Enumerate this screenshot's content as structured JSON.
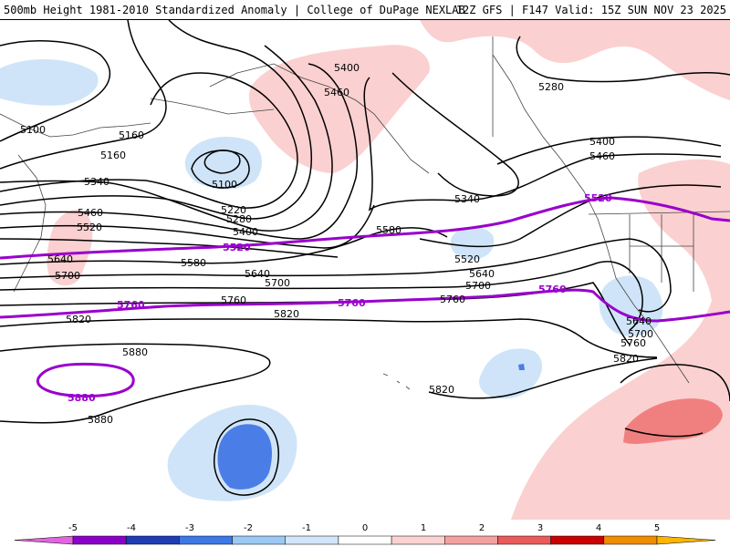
{
  "header": {
    "title": "500mb Height 1981-2010 Standardized Anomaly | College of DuPage NEXLAB",
    "run_info": "12Z GFS | F147 Valid: 15Z SUN NOV 23 2025"
  },
  "contour_labels": {
    "black": [
      "5100",
      "5160",
      "5160",
      "5100",
      "5220",
      "5280",
      "5340",
      "5340",
      "5400",
      "5400",
      "5400",
      "5460",
      "5460",
      "5460",
      "5520",
      "5520",
      "5580",
      "5580",
      "5640",
      "5640",
      "5640",
      "5700",
      "5700",
      "5700",
      "5760",
      "5760",
      "5760",
      "5820",
      "5820",
      "5820",
      "5820",
      "5880",
      "5880",
      "5280"
    ],
    "purple": [
      "5520",
      "5520",
      "5760",
      "5760",
      "5760",
      "5880"
    ]
  },
  "colorbar": {
    "ticks": [
      "-5",
      "-4",
      "-3",
      "-2",
      "-1",
      "0",
      "1",
      "2",
      "3",
      "4",
      "5"
    ],
    "colors": [
      "#e066e0",
      "#8a00c8",
      "#1e3cb4",
      "#3c78e6",
      "#9cc8f5",
      "#d2e6fa",
      "#ffffff",
      "#fad2d2",
      "#f5a0a0",
      "#eb5a5a",
      "#c80000",
      "#f08c00",
      "#ffb400"
    ]
  },
  "colors": {
    "positive_light": "#fbd0d0",
    "positive_mid": "#f08080",
    "negative_light": "#cfe4f8",
    "negative_mid": "#4a7de6",
    "contour": "#000000",
    "highlight_contour": "#9900cc"
  }
}
